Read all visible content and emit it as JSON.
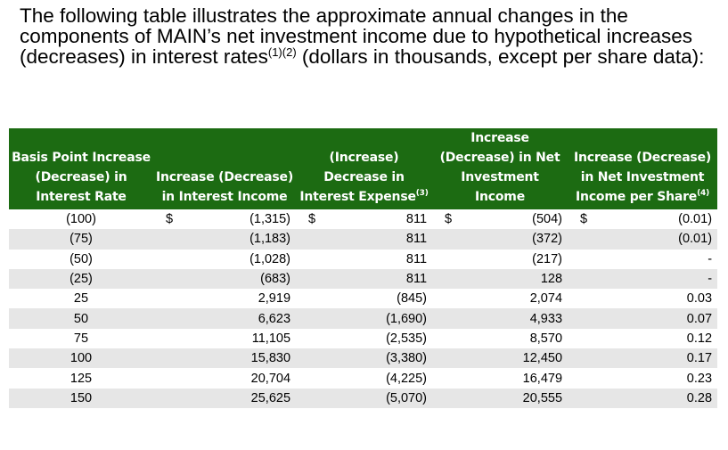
{
  "intro": {
    "text_before": "The following table illustrates the approximate annual changes in the components of MAIN’s net investment income due to hypothetical increases (decreases) in interest rates",
    "footnote_refs": "(1)(2)",
    "text_after": " (dollars in thousands, except per share data):"
  },
  "table": {
    "headers": {
      "basis_point": "Basis Point Increase (Decrease) in Interest Rate",
      "interest_income": "Increase (Decrease) in Interest Income",
      "interest_expense": "(Increase) Decrease in Interest Expense",
      "interest_expense_note": "(3)",
      "net_investment_income": "Increase (Decrease) in Net Investment Income",
      "per_share": "Increase (Decrease) in Net Investment Income per Share",
      "per_share_note": "(4)"
    },
    "currency_symbol": "$",
    "rows": [
      {
        "rate": "(100)",
        "income": "(1,315)",
        "expense": "811",
        "nii": "(504)",
        "per_share": "(0.01)"
      },
      {
        "rate": "(75)",
        "income": "(1,183)",
        "expense": "811",
        "nii": "(372)",
        "per_share": "(0.01)"
      },
      {
        "rate": "(50)",
        "income": "(1,028)",
        "expense": "811",
        "nii": "(217)",
        "per_share": "-"
      },
      {
        "rate": "(25)",
        "income": "(683)",
        "expense": "811",
        "nii": "128",
        "per_share": "-"
      },
      {
        "rate": "25",
        "income": "2,919",
        "expense": "(845)",
        "nii": "2,074",
        "per_share": "0.03"
      },
      {
        "rate": "50",
        "income": "6,623",
        "expense": "(1,690)",
        "nii": "4,933",
        "per_share": "0.07"
      },
      {
        "rate": "75",
        "income": "11,105",
        "expense": "(2,535)",
        "nii": "8,570",
        "per_share": "0.12"
      },
      {
        "rate": "100",
        "income": "15,830",
        "expense": "(3,380)",
        "nii": "12,450",
        "per_share": "0.17"
      },
      {
        "rate": "125",
        "income": "20,704",
        "expense": "(4,225)",
        "nii": "16,479",
        "per_share": "0.23"
      },
      {
        "rate": "150",
        "income": "25,625",
        "expense": "(5,070)",
        "nii": "20,555",
        "per_share": "0.28"
      }
    ]
  }
}
